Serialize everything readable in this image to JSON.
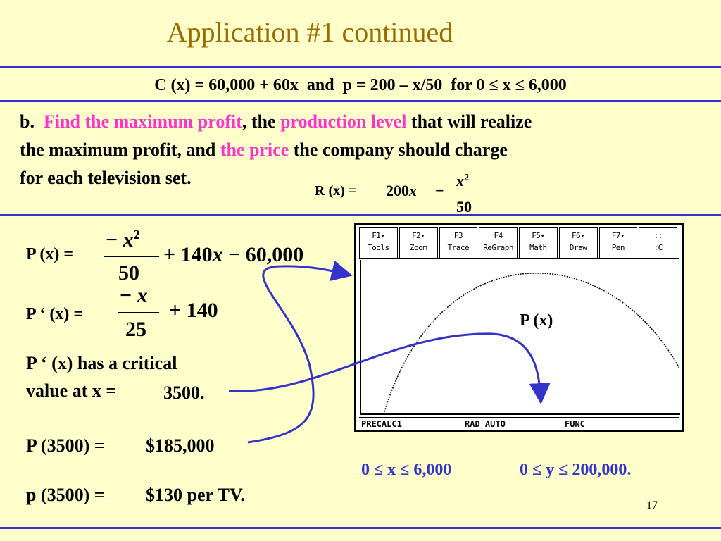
{
  "title": "Application #1 continued",
  "given": "C (x) = 60,000 + 60x  and  p = 200 – x/50  for 0 ≤ x ≤ 6,000",
  "problem": {
    "lines": [
      [
        {
          "text": "b.  "
        },
        {
          "text": "Find the maximum profit",
          "highlight": true
        },
        {
          "text": ", the "
        },
        {
          "text": "production level",
          "highlight": true
        },
        {
          "text": " that will realize"
        }
      ],
      [
        {
          "text": "the maximum profit, and "
        },
        {
          "text": "the price",
          "highlight": true
        },
        {
          "text": " the company should charge"
        }
      ],
      [
        {
          "text": "for each television set."
        }
      ]
    ]
  },
  "revenue": {
    "lhs": "R (x) =",
    "term": "200",
    "var": "x",
    "minus": "−",
    "num_var": "x",
    "num_exp": "2",
    "den": "50"
  },
  "profit": {
    "lhs": "P (x) =",
    "sign": "−",
    "num_var": "x",
    "num_exp": "2",
    "den": "50",
    "rest1": "+ 140",
    "var": "x",
    "rest2": "− 60,000"
  },
  "derivative": {
    "lhs": "P ‘ (x) =",
    "sign": "−",
    "num_var": "x",
    "den": "25",
    "rest": "+ 140"
  },
  "critical": {
    "line1": "P ‘ (x) has a critical",
    "line2": "value at x =",
    "value": "3500."
  },
  "maximum": {
    "lhs": "P (3500) =",
    "value": "$185,000"
  },
  "price": {
    "lhs": "p (3500) =",
    "value": "$130 per TV."
  },
  "calculator": {
    "tabs": [
      {
        "key": "F1▾",
        "label": "Tools"
      },
      {
        "key": "F2▾",
        "label": "Zoom"
      },
      {
        "key": "F3",
        "label": "Trace"
      },
      {
        "key": "F4",
        "label": "ReGraph"
      },
      {
        "key": "F5▾",
        "label": "Math"
      },
      {
        "key": "F6▾",
        "label": "Draw"
      },
      {
        "key": "F7▾",
        "label": "Pen"
      },
      {
        "key": "::",
        "label": ":C"
      }
    ],
    "status": [
      "PRECALC1",
      "RAD AUTO",
      "FUNC"
    ],
    "graph_label": "P (x)"
  },
  "window": {
    "x_range": "0 ≤ x ≤ 6,000",
    "y_range": "0 ≤ y ≤ 200,000."
  },
  "page_number": "17"
}
